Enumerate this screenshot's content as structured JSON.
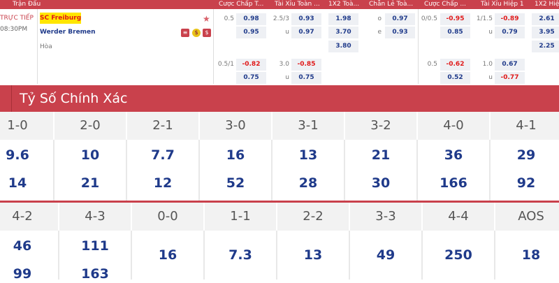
{
  "top": {
    "headers": [
      "Trận Đấu",
      "Cược Chấp T...",
      "Tài Xỉu Toàn ...",
      "1X2 Toà...",
      "Chẵn Lẻ Toà...",
      "Cược Chấp ...",
      "Tài Xỉu Hiệp 1",
      "1X2 Hiệ..."
    ],
    "status": "TRỰC TIẾP",
    "time": "08:30PM",
    "home": "SC Freiburg",
    "away": "Werder Bremen",
    "draw": "Hòa",
    "hdp1": {
      "line": "0.5",
      "home": "0.98",
      "away": "0.95"
    },
    "ou1": {
      "line": "2.5/3",
      "over": "0.93",
      "u": "u",
      "under": "0.97"
    },
    "x12": {
      "home": "1.98",
      "away": "3.70",
      "draw": "3.80"
    },
    "oe": {
      "o": "o",
      "odd": "0.97",
      "e": "e",
      "even": "0.93"
    },
    "hhdp1": {
      "line": "0/0.5",
      "home": "-0.95",
      "away": "0.85"
    },
    "hou1": {
      "line": "1/1.5",
      "over": "-0.89",
      "u": "u",
      "under": "0.79"
    },
    "hx12": {
      "home": "2.61",
      "away": "3.95",
      "draw": "2.25"
    },
    "hdp2": {
      "line": "0.5/1",
      "home": "-0.82",
      "away": "0.75"
    },
    "ou2": {
      "line": "3.0",
      "over": "-0.85",
      "u": "u",
      "under": "0.75"
    },
    "hhdp2": {
      "line": "0.5",
      "home": "-0.62",
      "away": "0.52"
    },
    "hou2": {
      "line": "1.0",
      "over": "0.67",
      "u": "u",
      "under": "-0.77"
    },
    "colors": {
      "accent": "#c9414c",
      "odds": "#1f3a8a",
      "negative": "#e01818"
    }
  },
  "correct_score": {
    "title": "Tỷ Số Chính Xác",
    "row1": [
      {
        "s": "1-0",
        "a": "9.6",
        "b": "14"
      },
      {
        "s": "2-0",
        "a": "10",
        "b": "21"
      },
      {
        "s": "2-1",
        "a": "7.7",
        "b": "12"
      },
      {
        "s": "3-0",
        "a": "16",
        "b": "52"
      },
      {
        "s": "3-1",
        "a": "13",
        "b": "28"
      },
      {
        "s": "3-2",
        "a": "21",
        "b": "30"
      },
      {
        "s": "4-0",
        "a": "36",
        "b": "166"
      },
      {
        "s": "4-1",
        "a": "29",
        "b": "92"
      }
    ],
    "row2": [
      {
        "s": "4-2",
        "a": "46",
        "b": "99"
      },
      {
        "s": "4-3",
        "a": "111",
        "b": "163"
      },
      {
        "s": "0-0",
        "a": "16"
      },
      {
        "s": "1-1",
        "a": "7.3"
      },
      {
        "s": "2-2",
        "a": "13"
      },
      {
        "s": "3-3",
        "a": "49"
      },
      {
        "s": "4-4",
        "a": "250"
      },
      {
        "s": "AOS",
        "a": "18"
      }
    ]
  }
}
